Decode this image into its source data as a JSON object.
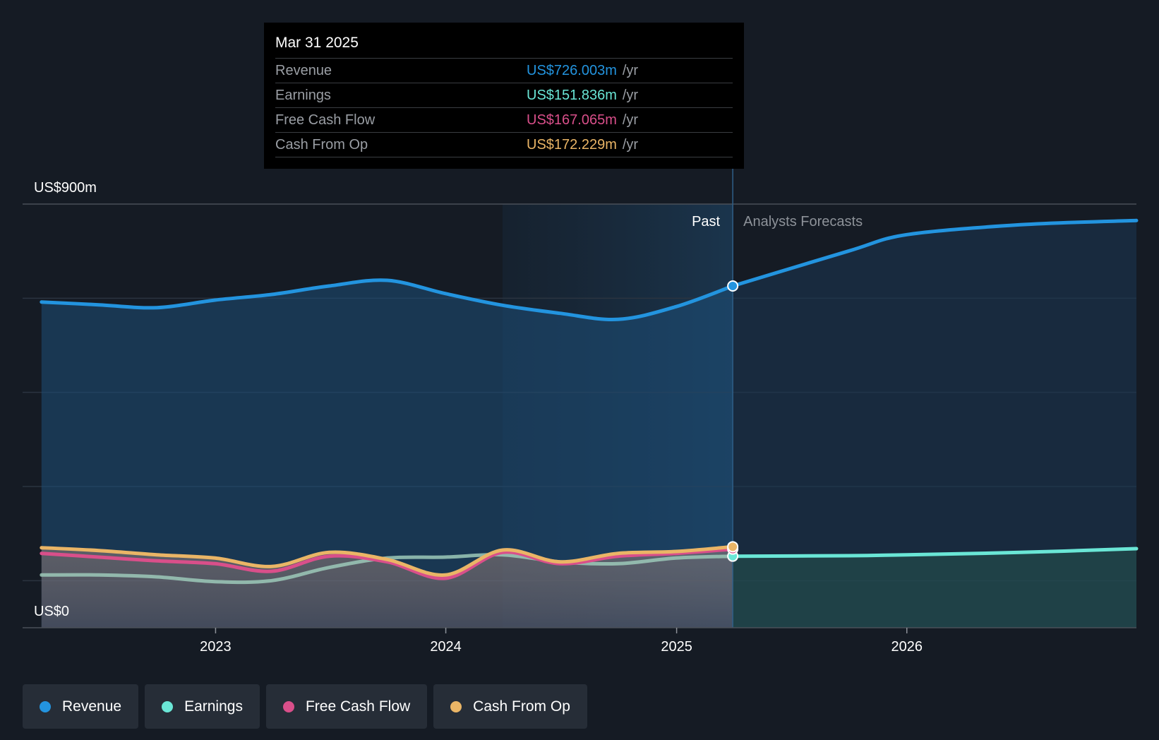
{
  "tooltip": {
    "date": "Mar 31 2025",
    "rows": [
      {
        "label": "Revenue",
        "value": "US$726.003m",
        "unit": "/yr",
        "color": "#2394df"
      },
      {
        "label": "Earnings",
        "value": "US$151.836m",
        "unit": "/yr",
        "color": "#6ae6d6"
      },
      {
        "label": "Free Cash Flow",
        "value": "US$167.065m",
        "unit": "/yr",
        "color": "#d94f8a"
      },
      {
        "label": "Cash From Op",
        "value": "US$172.229m",
        "unit": "/yr",
        "color": "#eab566"
      }
    ]
  },
  "legend": [
    {
      "label": "Revenue",
      "color": "#2394df"
    },
    {
      "label": "Earnings",
      "color": "#6ae6d6"
    },
    {
      "label": "Free Cash Flow",
      "color": "#d94f8a"
    },
    {
      "label": "Cash From Op",
      "color": "#eab566"
    }
  ],
  "chart_data": {
    "type": "line",
    "y_top_label": "US$900m",
    "y_bottom_label": "US$0",
    "ylim": [
      0,
      900
    ],
    "xlim": [
      "2022-03-01",
      "2026-12-31"
    ],
    "x_ticks": [
      "2023",
      "2024",
      "2025",
      "2026"
    ],
    "past_label": "Past",
    "forecast_label": "Analysts Forecasts",
    "divider_date": "2025-03-31",
    "highlight_start": "2024-03-31",
    "grid": true,
    "series": [
      {
        "name": "Revenue",
        "color": "#2394df",
        "points": [
          [
            "2022-03-31",
            692
          ],
          [
            "2022-06-30",
            686
          ],
          [
            "2022-09-30",
            680
          ],
          [
            "2022-12-31",
            696
          ],
          [
            "2023-03-31",
            708
          ],
          [
            "2023-06-30",
            726
          ],
          [
            "2023-09-30",
            738
          ],
          [
            "2023-12-31",
            710
          ],
          [
            "2024-03-31",
            685
          ],
          [
            "2024-06-30",
            668
          ],
          [
            "2024-09-30",
            655
          ],
          [
            "2024-12-31",
            682
          ],
          [
            "2025-03-31",
            726
          ]
        ],
        "forecast": [
          [
            "2025-03-31",
            726
          ],
          [
            "2025-09-30",
            800
          ],
          [
            "2026-01-01",
            835
          ],
          [
            "2026-06-30",
            856
          ],
          [
            "2026-12-31",
            865
          ]
        ]
      },
      {
        "name": "Earnings",
        "color": "#6ae6d6",
        "points": [
          [
            "2022-03-31",
            112
          ],
          [
            "2022-06-30",
            112
          ],
          [
            "2022-09-30",
            108
          ],
          [
            "2022-12-31",
            98
          ],
          [
            "2023-03-31",
            100
          ],
          [
            "2023-06-30",
            128
          ],
          [
            "2023-09-30",
            148
          ],
          [
            "2023-12-31",
            150
          ],
          [
            "2024-03-31",
            155
          ],
          [
            "2024-06-30",
            140
          ],
          [
            "2024-09-30",
            136
          ],
          [
            "2024-12-31",
            148
          ],
          [
            "2025-03-31",
            152
          ]
        ],
        "forecast": [
          [
            "2025-03-31",
            152
          ],
          [
            "2025-09-30",
            153
          ],
          [
            "2026-01-01",
            155
          ],
          [
            "2026-06-30",
            160
          ],
          [
            "2026-12-31",
            168
          ]
        ]
      },
      {
        "name": "Free Cash Flow",
        "color": "#d94f8a",
        "points": [
          [
            "2022-03-31",
            158
          ],
          [
            "2022-06-30",
            150
          ],
          [
            "2022-09-30",
            142
          ],
          [
            "2022-12-31",
            136
          ],
          [
            "2023-03-31",
            120
          ],
          [
            "2023-06-30",
            152
          ],
          [
            "2023-09-30",
            140
          ],
          [
            "2023-12-31",
            105
          ],
          [
            "2024-03-31",
            160
          ],
          [
            "2024-06-30",
            136
          ],
          [
            "2024-09-30",
            152
          ],
          [
            "2024-12-31",
            158
          ],
          [
            "2025-03-31",
            167
          ]
        ],
        "forecast": []
      },
      {
        "name": "Cash From Op",
        "color": "#eab566",
        "points": [
          [
            "2022-03-31",
            170
          ],
          [
            "2022-06-30",
            164
          ],
          [
            "2022-09-30",
            155
          ],
          [
            "2022-12-31",
            148
          ],
          [
            "2023-03-31",
            130
          ],
          [
            "2023-06-30",
            160
          ],
          [
            "2023-09-30",
            145
          ],
          [
            "2023-12-31",
            112
          ],
          [
            "2024-03-31",
            165
          ],
          [
            "2024-06-30",
            140
          ],
          [
            "2024-09-30",
            158
          ],
          [
            "2024-12-31",
            162
          ],
          [
            "2025-03-31",
            172
          ]
        ],
        "forecast": []
      }
    ]
  }
}
